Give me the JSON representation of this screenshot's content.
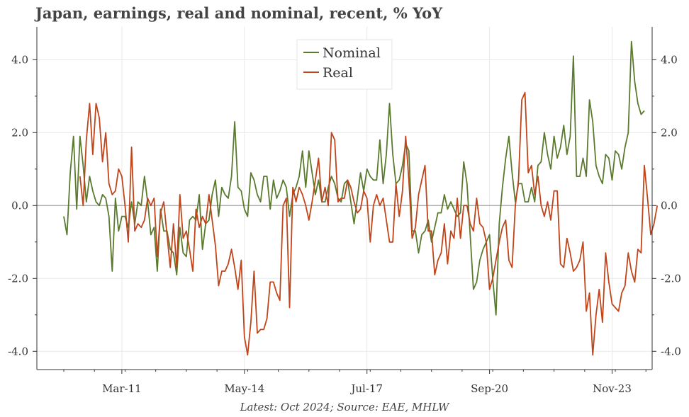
{
  "title": "Japan, earnings, real and nominal, recent, % YoY",
  "footer": "Latest: Oct 2024; Source: EAE, MHLW",
  "chart_data": {
    "type": "line",
    "title": "Japan, earnings, real and nominal, recent, % YoY",
    "xlabel": "",
    "ylabel": "",
    "ylim": [
      -4.5,
      4.9
    ],
    "yticks": [
      "4.0",
      "2.0",
      "0.0",
      "-2.0",
      "-4.0"
    ],
    "ytick_values": [
      4,
      2,
      0,
      -2,
      -4
    ],
    "xticks": [
      "Mar-11",
      "May-14",
      "Jul-17",
      "Sep-20",
      "Nov-23"
    ],
    "xtick_positions": [
      18,
      56,
      94,
      132,
      170
    ],
    "x_start_label": "Jan-09",
    "grid": true,
    "legend": "top-center",
    "colors": {
      "Nominal": "#5a7a2e",
      "Real": "#c0451a",
      "zero_line": "#999999"
    },
    "series": [
      {
        "name": "Nominal",
        "values": [
          -0.3,
          -0.8,
          0.9,
          1.9,
          -0.1,
          1.9,
          1.1,
          0.1,
          0.8,
          0.4,
          0.1,
          0.0,
          0.3,
          0.2,
          -0.3,
          -1.8,
          0.2,
          -0.7,
          -0.3,
          -0.3,
          -0.6,
          0.1,
          -0.5,
          0.1,
          0.0,
          0.8,
          0.1,
          -0.8,
          -0.6,
          -1.8,
          -0.1,
          -0.7,
          -0.7,
          -1.2,
          -1.3,
          -1.9,
          -0.6,
          -1.3,
          -1.4,
          -0.4,
          -0.3,
          -0.4,
          0.3,
          -1.2,
          -0.5,
          -0.4,
          0.3,
          0.7,
          -0.3,
          0.5,
          0.3,
          0.2,
          0.8,
          2.3,
          0.5,
          0.4,
          -0.1,
          -0.3,
          0.9,
          0.7,
          0.3,
          0.1,
          0.8,
          0.8,
          -0.1,
          0.7,
          0.2,
          0.4,
          0.7,
          0.5,
          -0.3,
          0.3,
          0.5,
          0.8,
          1.5,
          0.5,
          1.5,
          0.9,
          0.3,
          0.7,
          0.1,
          0.1,
          0.5,
          0.8,
          0.6,
          0.2,
          0.1,
          0.6,
          0.7,
          0.1,
          -0.5,
          0.2,
          0.9,
          0.4,
          1.0,
          0.8,
          0.7,
          0.7,
          1.8,
          0.6,
          1.4,
          2.8,
          1.4,
          0.6,
          0.7,
          1.1,
          1.7,
          1.5,
          -0.7,
          -0.7,
          -1.3,
          -0.8,
          -0.7,
          -0.4,
          -1.0,
          -0.6,
          -0.2,
          -0.2,
          0.3,
          -0.1,
          0.1,
          -0.1,
          -0.3,
          -0.2,
          1.2,
          0.6,
          -0.8,
          -2.3,
          -2.1,
          -1.5,
          -1.2,
          -1.0,
          -0.8,
          -2.0,
          -3.0,
          -0.5,
          0.5,
          1.3,
          1.9,
          0.9,
          0.1,
          0.6,
          0.6,
          0.1,
          0.1,
          0.5,
          0.1,
          1.1,
          1.2,
          2.0,
          1.4,
          1.0,
          1.9,
          1.3,
          1.6,
          2.2,
          1.4,
          1.9,
          4.1,
          0.8,
          0.8,
          1.3,
          0.8,
          2.9,
          2.3,
          1.1,
          0.8,
          0.6,
          1.4,
          1.3,
          0.7,
          1.5,
          1.4,
          1.0,
          1.6,
          2.0,
          4.5,
          3.4,
          2.8,
          2.5,
          2.6
        ],
        "start_index": 0
      },
      {
        "name": "Real",
        "values": [
          0.8,
          0.0,
          1.8,
          2.8,
          1.4,
          2.8,
          2.4,
          1.2,
          2.0,
          0.6,
          0.3,
          0.4,
          1.0,
          0.8,
          0.0,
          -1.0,
          1.6,
          -0.7,
          -0.5,
          -0.6,
          -0.4,
          0.2,
          0.0,
          0.2,
          -1.4,
          -0.2,
          0.1,
          -0.8,
          -1.7,
          -0.5,
          -1.7,
          0.3,
          -0.9,
          -0.7,
          -1.2,
          -1.8,
          -0.1,
          -0.6,
          -0.3,
          -0.5,
          0.3,
          -0.4,
          -1.1,
          -2.2,
          -1.8,
          -1.8,
          -1.6,
          -1.2,
          -1.7,
          -2.3,
          -1.5,
          -3.6,
          -4.1,
          -3.2,
          -1.8,
          -3.5,
          -3.4,
          -3.4,
          -3.1,
          -2.1,
          -2.1,
          -2.4,
          -2.6,
          0.0,
          0.2,
          -2.8,
          0.5,
          0.1,
          0.5,
          0.3,
          0.0,
          -0.4,
          0.1,
          0.7,
          1.3,
          0.1,
          0.5,
          0.0,
          2.0,
          1.8,
          0.1,
          0.2,
          0.2,
          0.7,
          0.5,
          0.1,
          -0.2,
          -0.1,
          0.4,
          0.2,
          -1.0,
          0.0,
          0.3,
          0.0,
          0.2,
          -0.4,
          -1.0,
          -1.0,
          0.6,
          -0.3,
          0.4,
          1.9,
          0.7,
          -0.9,
          -0.6,
          0.3,
          0.7,
          1.1,
          -0.7,
          -0.7,
          -1.9,
          -1.5,
          -1.3,
          -0.5,
          -1.6,
          -0.7,
          -0.9,
          0.2,
          -0.9,
          0.0,
          0.0,
          -0.5,
          -0.7,
          0.2,
          -0.5,
          -0.6,
          -1.0,
          -2.3,
          -2.0,
          -1.5,
          -1.0,
          -0.6,
          -0.4,
          -1.5,
          -1.7,
          0.0,
          0.7,
          2.9,
          3.1,
          0.9,
          1.1,
          0.3,
          0.8,
          0.0,
          -0.3,
          0.1,
          -0.4,
          0.4,
          0.4,
          -1.6,
          -1.7,
          -0.9,
          -1.3,
          -1.8,
          -1.7,
          -1.5,
          -1.0,
          -2.9,
          -2.4,
          -4.1,
          -3.0,
          -2.3,
          -3.2,
          -1.3,
          -2.1,
          -2.7,
          -2.8,
          -2.9,
          -2.4,
          -2.2,
          -1.3,
          -1.8,
          -2.1,
          -1.2,
          -1.3,
          1.1,
          0.2,
          -0.8,
          -0.5,
          0.0
        ],
        "start_index": 5
      }
    ]
  }
}
